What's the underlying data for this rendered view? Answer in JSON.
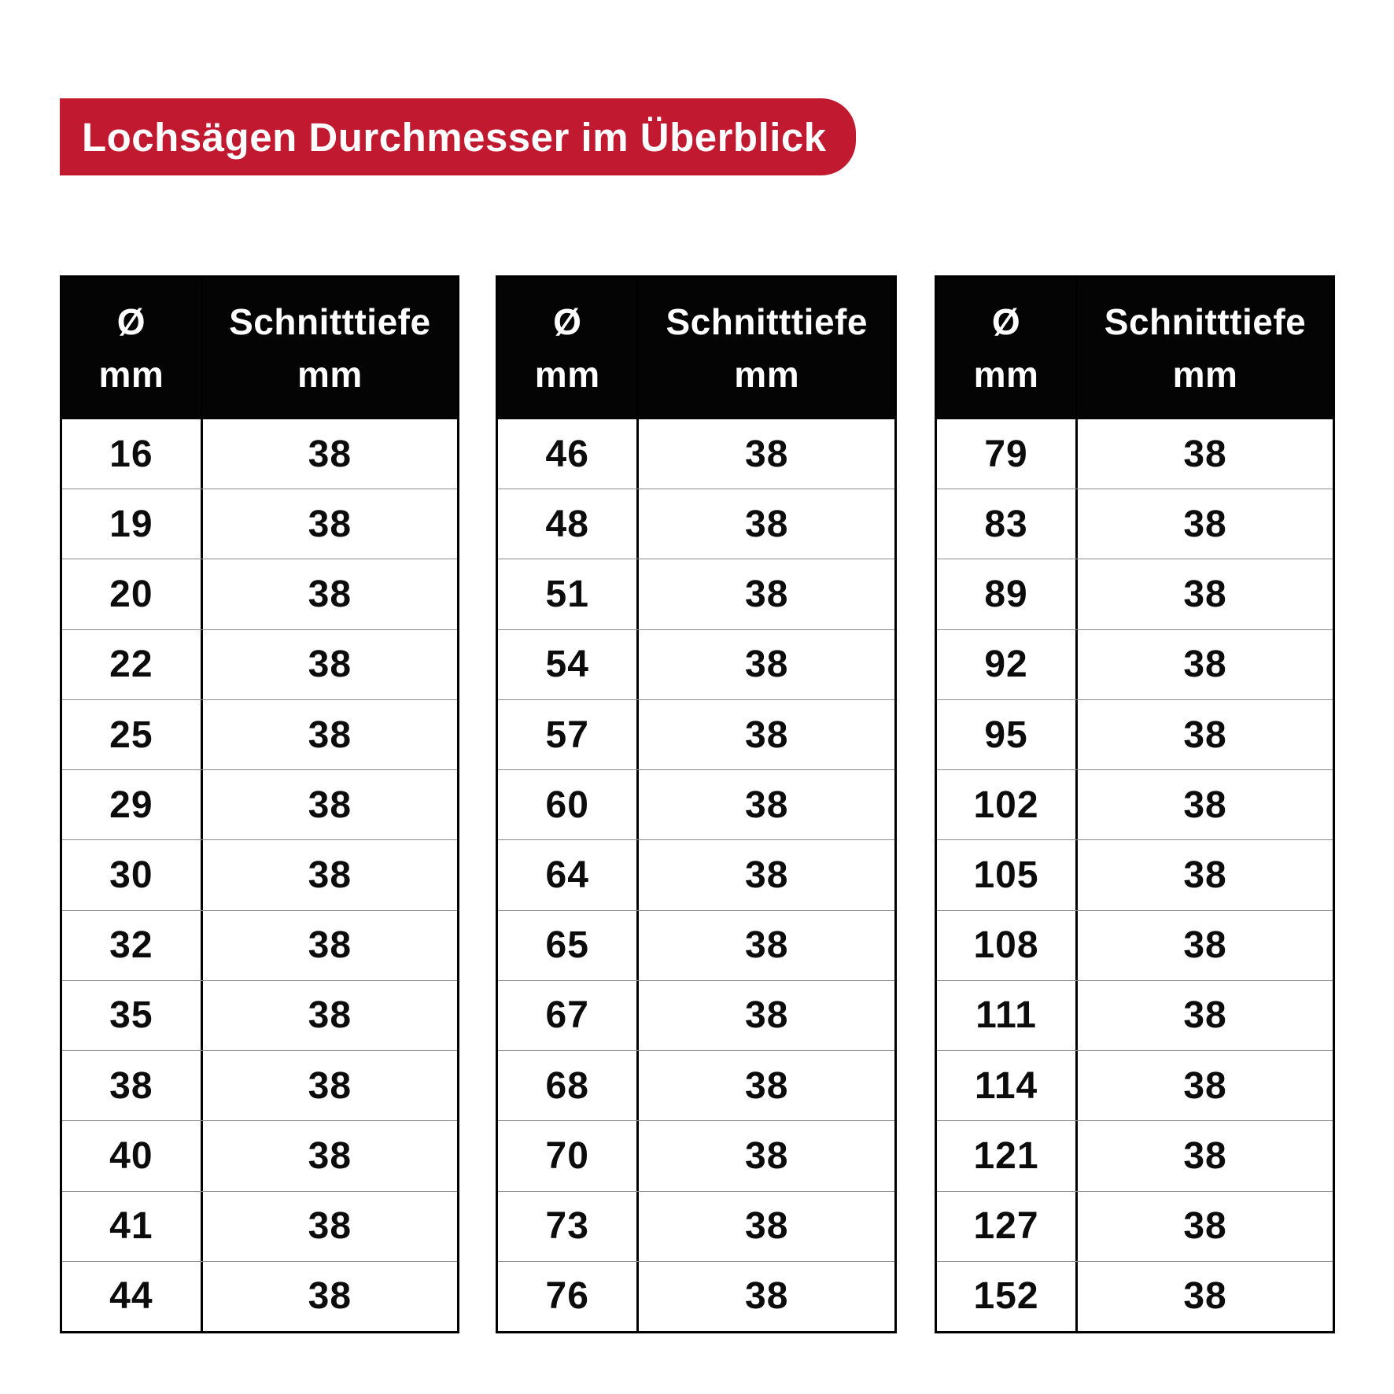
{
  "banner": {
    "title": "Lochsägen Durchmesser im Überblick"
  },
  "header": {
    "diameter_symbol": "Ø",
    "unit": "mm",
    "depth_label": "Schnitttiefe"
  },
  "colors": {
    "banner_red": "#C11A30",
    "header_black": "#040404",
    "row_line_gray": "#8C8C8C",
    "text_black": "#0C0C0C",
    "background": "#FFFFFF"
  },
  "chart_data": [
    {
      "type": "table",
      "title": "Lochsägen Durchmesser im Überblick",
      "columns": [
        "Ø mm",
        "Schnitttiefe mm"
      ],
      "rows": [
        [
          16,
          38
        ],
        [
          19,
          38
        ],
        [
          20,
          38
        ],
        [
          22,
          38
        ],
        [
          25,
          38
        ],
        [
          29,
          38
        ],
        [
          30,
          38
        ],
        [
          32,
          38
        ],
        [
          35,
          38
        ],
        [
          38,
          38
        ],
        [
          40,
          38
        ],
        [
          41,
          38
        ],
        [
          44,
          38
        ]
      ]
    },
    {
      "type": "table",
      "title": "Lochsägen Durchmesser im Überblick",
      "columns": [
        "Ø mm",
        "Schnitttiefe mm"
      ],
      "rows": [
        [
          46,
          38
        ],
        [
          48,
          38
        ],
        [
          51,
          38
        ],
        [
          54,
          38
        ],
        [
          57,
          38
        ],
        [
          60,
          38
        ],
        [
          64,
          38
        ],
        [
          65,
          38
        ],
        [
          67,
          38
        ],
        [
          68,
          38
        ],
        [
          70,
          38
        ],
        [
          73,
          38
        ],
        [
          76,
          38
        ]
      ]
    },
    {
      "type": "table",
      "title": "Lochsägen Durchmesser im Überblick",
      "columns": [
        "Ø mm",
        "Schnitttiefe mm"
      ],
      "rows": [
        [
          79,
          38
        ],
        [
          83,
          38
        ],
        [
          89,
          38
        ],
        [
          92,
          38
        ],
        [
          95,
          38
        ],
        [
          102,
          38
        ],
        [
          105,
          38
        ],
        [
          108,
          38
        ],
        [
          111,
          38
        ],
        [
          114,
          38
        ],
        [
          121,
          38
        ],
        [
          127,
          38
        ],
        [
          152,
          38
        ]
      ]
    }
  ]
}
